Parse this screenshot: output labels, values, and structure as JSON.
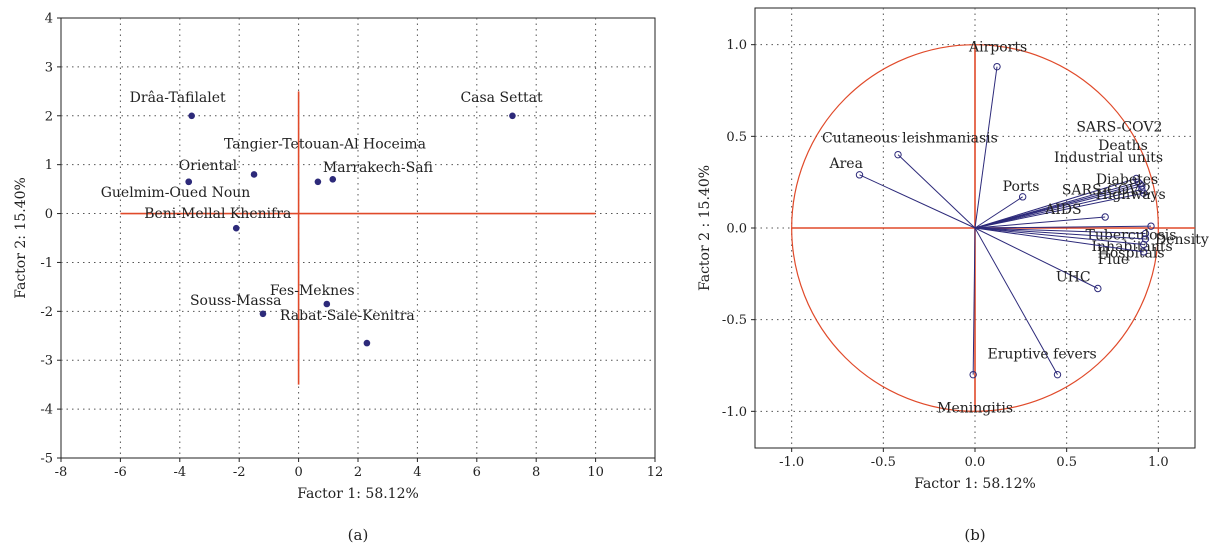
{
  "chart_data": [
    {
      "type": "scatter",
      "panel_label": "(a)",
      "xlabel": "Factor 1: 58.12%",
      "ylabel": "Factor 2: 15.40%",
      "xlim": [
        -8,
        12
      ],
      "ylim": [
        -5,
        4
      ],
      "xticks": [
        -8,
        -6,
        -4,
        -2,
        0,
        2,
        4,
        6,
        8,
        10,
        12
      ],
      "yticks": [
        -5,
        -4,
        -3,
        -2,
        -1,
        0,
        1,
        2,
        3,
        4
      ],
      "grid": true,
      "colors": {
        "points": "#2d2a7a",
        "crosshair": "#e04a2a"
      },
      "crosshair": {
        "h": [
          -6,
          10,
          0
        ],
        "v": [
          0,
          -3.5,
          2.5
        ]
      },
      "points": [
        {
          "label": "Drâa-Tafilalet",
          "x": -3.6,
          "y": 2.0
        },
        {
          "label": "Casa Settat",
          "x": 7.2,
          "y": 2.0
        },
        {
          "label": "Tangier-Tetouan-Al Hoceima",
          "x": -1.5,
          "y": 0.8
        },
        {
          "label": "Oriental",
          "x": -3.7,
          "y": 0.65
        },
        {
          "label": "Marrakech-Safi",
          "x": 0.65,
          "y": 0.65
        },
        {
          "label": "",
          "x": 1.15,
          "y": 0.7
        },
        {
          "label": "Guelmim-Oued Noun",
          "x": -3.7,
          "y": 0.65
        },
        {
          "label": "Beni-Mellal Khenifra",
          "x": -2.1,
          "y": -0.3
        },
        {
          "label": "Fes-Meknes",
          "x": 0.95,
          "y": -1.85
        },
        {
          "label": "Souss-Massa",
          "x": -1.2,
          "y": -2.05
        },
        {
          "label": "Rabat-Sale-Kenitra",
          "x": 2.3,
          "y": -2.65
        }
      ]
    },
    {
      "type": "scatter",
      "panel_label": "(b)",
      "xlabel": "Factor 1: 58.12%",
      "ylabel": "Factor 2 : 15.40%",
      "xlim": [
        -1.2,
        1.2
      ],
      "ylim": [
        -1.2,
        1.2
      ],
      "xticks": [
        -1.0,
        -0.5,
        0.0,
        0.5,
        1.0
      ],
      "yticks": [
        -1.0,
        -0.5,
        0.0,
        0.5,
        1.0
      ],
      "grid": true,
      "unit_circle": true,
      "colors": {
        "vectors": "#2d2a7a",
        "circle": "#e04a2a",
        "crosshair": "#e04a2a"
      },
      "vectors": [
        {
          "label": "Airports",
          "x": 0.12,
          "y": 0.88
        },
        {
          "label": "Cutaneous leishmaniasis",
          "x": -0.42,
          "y": 0.4
        },
        {
          "label": "Area",
          "x": -0.63,
          "y": 0.29
        },
        {
          "label": "Ports",
          "x": 0.26,
          "y": 0.17
        },
        {
          "label": "SARS-COV2",
          "x": 0.88,
          "y": 0.27
        },
        {
          "label": "Deaths",
          "x": 0.89,
          "y": 0.25
        },
        {
          "label": "Industrial units",
          "x": 0.9,
          "y": 0.24
        },
        {
          "label": "Diabetes",
          "x": 0.91,
          "y": 0.23
        },
        {
          "label": "SARS-COV-2",
          "x": 0.91,
          "y": 0.21
        },
        {
          "label": "Highways",
          "x": 0.92,
          "y": 0.19
        },
        {
          "label": "AIDS",
          "x": 0.71,
          "y": 0.06
        },
        {
          "label": "Density",
          "x": 0.96,
          "y": 0.01
        },
        {
          "label": "Tuberculosis",
          "x": 0.93,
          "y": -0.03
        },
        {
          "label": "Inhabitants",
          "x": 0.93,
          "y": -0.06
        },
        {
          "label": "Hospitals",
          "x": 0.92,
          "y": -0.09
        },
        {
          "label": "Flue",
          "x": 0.92,
          "y": -0.13
        },
        {
          "label": "UHC",
          "x": 0.67,
          "y": -0.33
        },
        {
          "label": "Eruptive fevers",
          "x": 0.45,
          "y": -0.8
        },
        {
          "label": "Meningitis",
          "x": -0.01,
          "y": -0.8
        }
      ]
    }
  ]
}
